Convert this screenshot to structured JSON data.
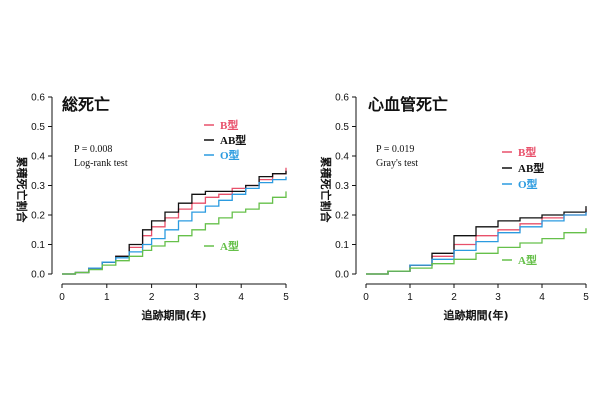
{
  "chart_data": [
    {
      "type": "line",
      "title": "総死亡",
      "xlabel": "追跡期間(年)",
      "ylabel": "累積死亡割合",
      "xlim": [
        0,
        5
      ],
      "ylim": [
        0,
        0.6
      ],
      "xticks": [
        "0",
        "1",
        "2",
        "3",
        "4",
        "5"
      ],
      "yticks": [
        "0.0",
        "0.1",
        "0.2",
        "0.3",
        "0.4",
        "0.5",
        "0.6"
      ],
      "grid": false,
      "legend_position": "top-right",
      "annotations": [
        "P = 0.008",
        "Log-rank test"
      ],
      "series": [
        {
          "name": "B型",
          "color": "#e8506a",
          "x": [
            0,
            0.3,
            0.6,
            0.9,
            1.2,
            1.5,
            1.8,
            2.0,
            2.3,
            2.6,
            2.9,
            3.2,
            3.5,
            3.8,
            4.1,
            4.4,
            4.7,
            5.0
          ],
          "y": [
            0,
            0.005,
            0.02,
            0.04,
            0.06,
            0.09,
            0.13,
            0.16,
            0.19,
            0.22,
            0.24,
            0.26,
            0.27,
            0.29,
            0.3,
            0.32,
            0.34,
            0.36
          ]
        },
        {
          "name": "AB型",
          "color": "#111111",
          "x": [
            0,
            0.3,
            0.6,
            0.9,
            1.2,
            1.5,
            1.8,
            2.0,
            2.3,
            2.6,
            2.9,
            3.2,
            3.5,
            3.8,
            4.1,
            4.4,
            4.7,
            5.0
          ],
          "y": [
            0,
            0.005,
            0.02,
            0.04,
            0.06,
            0.1,
            0.15,
            0.18,
            0.21,
            0.24,
            0.27,
            0.28,
            0.28,
            0.28,
            0.3,
            0.33,
            0.34,
            0.35
          ]
        },
        {
          "name": "O型",
          "color": "#2b9be0",
          "x": [
            0,
            0.3,
            0.6,
            0.9,
            1.2,
            1.5,
            1.8,
            2.0,
            2.3,
            2.6,
            2.9,
            3.2,
            3.5,
            3.8,
            4.1,
            4.4,
            4.7,
            5.0
          ],
          "y": [
            0,
            0.005,
            0.02,
            0.04,
            0.055,
            0.075,
            0.1,
            0.12,
            0.15,
            0.18,
            0.21,
            0.23,
            0.25,
            0.27,
            0.29,
            0.31,
            0.32,
            0.33
          ]
        },
        {
          "name": "A型",
          "color": "#66c04a",
          "x": [
            0,
            0.3,
            0.6,
            0.9,
            1.2,
            1.5,
            1.8,
            2.0,
            2.3,
            2.6,
            2.9,
            3.2,
            3.5,
            3.8,
            4.1,
            4.4,
            4.7,
            5.0
          ],
          "y": [
            0,
            0.005,
            0.015,
            0.03,
            0.045,
            0.06,
            0.08,
            0.095,
            0.11,
            0.13,
            0.15,
            0.17,
            0.19,
            0.21,
            0.22,
            0.24,
            0.26,
            0.28
          ]
        }
      ]
    },
    {
      "type": "line",
      "title": "心血管死亡",
      "xlabel": "追跡期間(年)",
      "ylabel": "累積死亡割合",
      "xlim": [
        0,
        5
      ],
      "ylim": [
        0,
        0.6
      ],
      "xticks": [
        "0",
        "1",
        "2",
        "3",
        "4",
        "5"
      ],
      "yticks": [
        "0.0",
        "0.1",
        "0.2",
        "0.3",
        "0.4",
        "0.5",
        "0.6"
      ],
      "grid": false,
      "legend_position": "top-right",
      "annotations": [
        "P = 0.019",
        "Gray's test"
      ],
      "series": [
        {
          "name": "B型",
          "color": "#e8506a",
          "x": [
            0,
            0.5,
            1.0,
            1.5,
            2.0,
            2.5,
            3.0,
            3.5,
            4.0,
            4.5,
            5.0
          ],
          "y": [
            0,
            0.01,
            0.03,
            0.06,
            0.1,
            0.13,
            0.15,
            0.17,
            0.19,
            0.2,
            0.22
          ]
        },
        {
          "name": "AB型",
          "color": "#111111",
          "x": [
            0,
            0.5,
            1.0,
            1.5,
            2.0,
            2.5,
            3.0,
            3.5,
            4.0,
            4.5,
            5.0
          ],
          "y": [
            0,
            0.01,
            0.03,
            0.07,
            0.13,
            0.16,
            0.18,
            0.19,
            0.2,
            0.21,
            0.23
          ]
        },
        {
          "name": "O型",
          "color": "#2b9be0",
          "x": [
            0,
            0.5,
            1.0,
            1.5,
            2.0,
            2.5,
            3.0,
            3.5,
            4.0,
            4.5,
            5.0
          ],
          "y": [
            0,
            0.01,
            0.03,
            0.05,
            0.08,
            0.11,
            0.14,
            0.16,
            0.18,
            0.2,
            0.21
          ]
        },
        {
          "name": "A型",
          "color": "#66c04a",
          "x": [
            0,
            0.5,
            1.0,
            1.5,
            2.0,
            2.5,
            3.0,
            3.5,
            4.0,
            4.5,
            5.0
          ],
          "y": [
            0,
            0.01,
            0.02,
            0.035,
            0.05,
            0.07,
            0.09,
            0.105,
            0.12,
            0.14,
            0.155
          ]
        }
      ]
    }
  ]
}
